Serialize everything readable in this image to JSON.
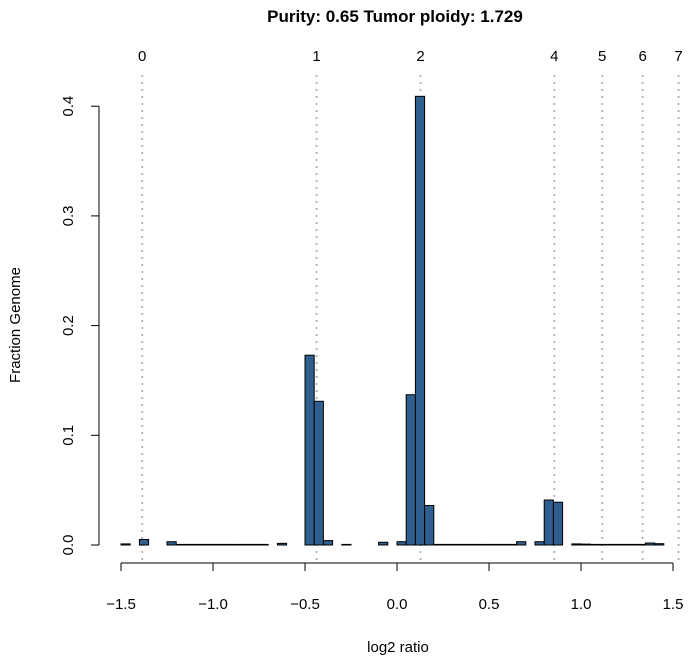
{
  "chart_data": {
    "type": "bar",
    "title": "Purity: 0.65  Tumor ploidy: 1.729",
    "xlabel": "log2 ratio",
    "ylabel": "Fraction Genome",
    "xlim": [
      -1.5,
      1.5
    ],
    "ylim": [
      0,
      0.41
    ],
    "x_ticks": [
      -1.5,
      -1.0,
      -0.5,
      0.0,
      0.5,
      1.0,
      1.5
    ],
    "x_tick_labels": [
      "−1.5",
      "−1.0",
      "−0.5",
      "0.0",
      "0.5",
      "1.0",
      "1.5"
    ],
    "y_ticks": [
      0.0,
      0.1,
      0.2,
      0.3,
      0.4
    ],
    "y_tick_labels": [
      "0.0",
      "0.1",
      "0.2",
      "0.3",
      "0.4"
    ],
    "bin_width": 0.05,
    "bins": [
      {
        "x0": -1.5,
        "x1": -1.45,
        "value": 0.001
      },
      {
        "x0": -1.4,
        "x1": -1.35,
        "value": 0.005
      },
      {
        "x0": -1.25,
        "x1": -1.2,
        "value": 0.003
      },
      {
        "x0": -1.2,
        "x1": -1.15,
        "value": 0.0003
      },
      {
        "x0": -1.15,
        "x1": -1.1,
        "value": 0.0003
      },
      {
        "x0": -1.1,
        "x1": -1.05,
        "value": 0.0003
      },
      {
        "x0": -1.05,
        "x1": -1.0,
        "value": 0.0003
      },
      {
        "x0": -1.0,
        "x1": -0.95,
        "value": 0.0003
      },
      {
        "x0": -0.95,
        "x1": -0.9,
        "value": 0.0003
      },
      {
        "x0": -0.9,
        "x1": -0.85,
        "value": 0.0003
      },
      {
        "x0": -0.85,
        "x1": -0.8,
        "value": 0.0003
      },
      {
        "x0": -0.8,
        "x1": -0.75,
        "value": 0.0003
      },
      {
        "x0": -0.75,
        "x1": -0.7,
        "value": 0.0003
      },
      {
        "x0": -0.65,
        "x1": -0.6,
        "value": 0.0015
      },
      {
        "x0": -0.5,
        "x1": -0.45,
        "value": 0.173
      },
      {
        "x0": -0.45,
        "x1": -0.4,
        "value": 0.131
      },
      {
        "x0": -0.4,
        "x1": -0.35,
        "value": 0.004
      },
      {
        "x0": -0.3,
        "x1": -0.25,
        "value": 0.0005
      },
      {
        "x0": -0.1,
        "x1": -0.05,
        "value": 0.0025
      },
      {
        "x0": 0.0,
        "x1": 0.05,
        "value": 0.003
      },
      {
        "x0": 0.05,
        "x1": 0.1,
        "value": 0.137
      },
      {
        "x0": 0.1,
        "x1": 0.15,
        "value": 0.409
      },
      {
        "x0": 0.15,
        "x1": 0.2,
        "value": 0.036
      },
      {
        "x0": 0.2,
        "x1": 0.25,
        "value": 0.0003
      },
      {
        "x0": 0.25,
        "x1": 0.3,
        "value": 0.0003
      },
      {
        "x0": 0.3,
        "x1": 0.35,
        "value": 0.0003
      },
      {
        "x0": 0.35,
        "x1": 0.4,
        "value": 0.0003
      },
      {
        "x0": 0.4,
        "x1": 0.45,
        "value": 0.0003
      },
      {
        "x0": 0.45,
        "x1": 0.5,
        "value": 0.0003
      },
      {
        "x0": 0.5,
        "x1": 0.55,
        "value": 0.0003
      },
      {
        "x0": 0.55,
        "x1": 0.6,
        "value": 0.0003
      },
      {
        "x0": 0.6,
        "x1": 0.65,
        "value": 0.0003
      },
      {
        "x0": 0.65,
        "x1": 0.7,
        "value": 0.003
      },
      {
        "x0": 0.75,
        "x1": 0.8,
        "value": 0.003
      },
      {
        "x0": 0.8,
        "x1": 0.85,
        "value": 0.041
      },
      {
        "x0": 0.85,
        "x1": 0.9,
        "value": 0.039
      },
      {
        "x0": 0.95,
        "x1": 1.0,
        "value": 0.001
      },
      {
        "x0": 1.0,
        "x1": 1.05,
        "value": 0.0008
      },
      {
        "x0": 1.05,
        "x1": 1.1,
        "value": 0.0003
      },
      {
        "x0": 1.1,
        "x1": 1.15,
        "value": 0.0003
      },
      {
        "x0": 1.15,
        "x1": 1.2,
        "value": 0.0003
      },
      {
        "x0": 1.2,
        "x1": 1.25,
        "value": 0.0003
      },
      {
        "x0": 1.25,
        "x1": 1.3,
        "value": 0.0003
      },
      {
        "x0": 1.3,
        "x1": 1.35,
        "value": 0.0003
      },
      {
        "x0": 1.35,
        "x1": 1.4,
        "value": 0.0018
      },
      {
        "x0": 1.4,
        "x1": 1.45,
        "value": 0.0012
      }
    ],
    "copy_number_lines": [
      {
        "label": "0",
        "x": -1.385
      },
      {
        "label": "1",
        "x": -0.437
      },
      {
        "label": "2",
        "x": 0.128
      },
      {
        "label": "4",
        "x": 0.855
      },
      {
        "label": "5",
        "x": 1.115
      },
      {
        "label": "6",
        "x": 1.335
      },
      {
        "label": "7",
        "x": 1.53
      }
    ],
    "bar_color": "#2f5f8f",
    "bar_stroke": "#000000",
    "vline_color": "#b8b8b8",
    "grid": false
  }
}
